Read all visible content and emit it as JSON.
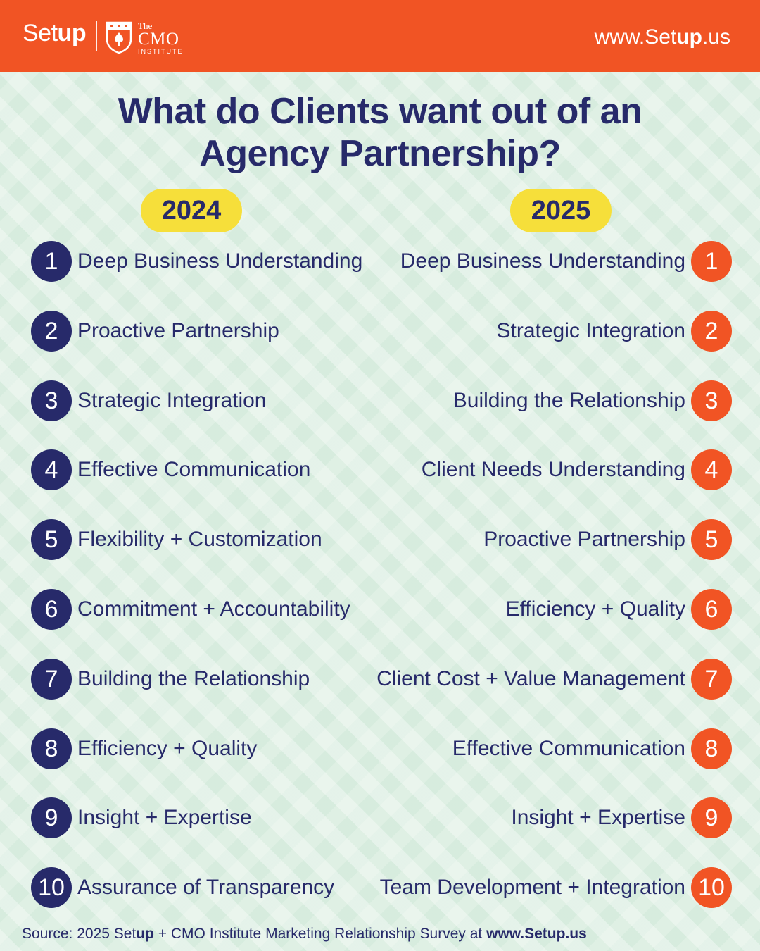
{
  "header": {
    "logo_setup_pre": "Set",
    "logo_setup_post": "up",
    "logo_cmo_the": "The",
    "logo_cmo_name": "CMO",
    "logo_cmo_inst": "INSTITUTE",
    "url_pre": "www.Set",
    "url_bold": "up",
    "url_post": ".us"
  },
  "title_line1": "What do Clients want out of an",
  "title_line2": "Agency Partnership?",
  "colors": {
    "orange": "#f15424",
    "navy": "#272a6a",
    "yellow": "#f6df3a",
    "background": "#dff0e4"
  },
  "year_2024": "2024",
  "year_2025": "2025",
  "list_2024": [
    {
      "rank": "1",
      "label": "Deep Business Understanding"
    },
    {
      "rank": "2",
      "label": "Proactive Partnership"
    },
    {
      "rank": "3",
      "label": "Strategic Integration"
    },
    {
      "rank": "4",
      "label": "Effective Communication"
    },
    {
      "rank": "5",
      "label": "Flexibility + Customization"
    },
    {
      "rank": "6",
      "label": "Commitment + Accountability"
    },
    {
      "rank": "7",
      "label": "Building the Relationship"
    },
    {
      "rank": "8",
      "label": "Efficiency + Quality"
    },
    {
      "rank": "9",
      "label": "Insight + Expertise"
    },
    {
      "rank": "10",
      "label": "Assurance of Transparency"
    }
  ],
  "list_2025": [
    {
      "rank": "1",
      "label": "Deep Business Understanding"
    },
    {
      "rank": "2",
      "label": "Strategic Integration"
    },
    {
      "rank": "3",
      "label": "Building the Relationship"
    },
    {
      "rank": "4",
      "label": "Client Needs Understanding"
    },
    {
      "rank": "5",
      "label": "Proactive Partnership"
    },
    {
      "rank": "6",
      "label": "Efficiency + Quality"
    },
    {
      "rank": "7",
      "label": "Client Cost + Value Management"
    },
    {
      "rank": "8",
      "label": "Effective Communication"
    },
    {
      "rank": "9",
      "label": "Insight + Expertise"
    },
    {
      "rank": "10",
      "label": "Team Development + Integration"
    }
  ],
  "source": {
    "pre": "Source: 2025 Set",
    "bold_up": "up",
    "mid": " + CMO Institute Marketing Relationship Survey at ",
    "url": "www.Setup.us"
  }
}
